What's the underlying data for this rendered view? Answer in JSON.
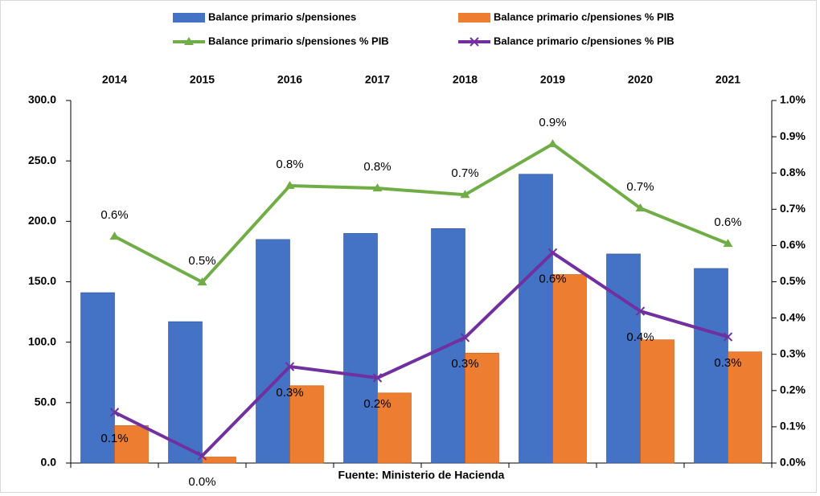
{
  "chart_data": {
    "type": "bar",
    "categories": [
      "2014",
      "2015",
      "2016",
      "2017",
      "2018",
      "2019",
      "2020",
      "2021"
    ],
    "series": [
      {
        "name": "Balance primario s/pensiones",
        "type": "bar",
        "color": "#4472c4",
        "values": [
          141,
          117,
          185,
          190,
          194,
          239,
          173,
          161
        ]
      },
      {
        "name": "Balance primario  c/pensiones % PIB",
        "type": "bar",
        "color": "#ed7d31",
        "values": [
          31,
          5,
          64,
          58,
          91,
          156,
          102,
          92
        ]
      },
      {
        "name": "Balance primario  s/pensiones % PIB",
        "type": "line",
        "axis": "y2",
        "color": "#70ad47",
        "marker": "triangle",
        "values": [
          0.625,
          0.499,
          0.765,
          0.758,
          0.74,
          0.88,
          0.703,
          0.605
        ],
        "value_labels": [
          "0.6%",
          "0.5%",
          "0.8%",
          "0.8%",
          "0.7%",
          "0.9%",
          "0.7%",
          "0.6%"
        ]
      },
      {
        "name": "Balance primario  c/pensiones % PIB",
        "type": "line",
        "axis": "y2",
        "color": "#7030a0",
        "marker": "x",
        "values": [
          0.14,
          0.02,
          0.266,
          0.235,
          0.346,
          0.58,
          0.419,
          0.348
        ],
        "value_labels": [
          "0.1%",
          "0.0%",
          "0.3%",
          "0.2%",
          "0.3%",
          "0.6%",
          "0.4%",
          "0.3%"
        ]
      }
    ],
    "ylim": [
      0,
      300
    ],
    "yticks": [
      {
        "value": 0,
        "label": "0.0"
      },
      {
        "value": 50,
        "label": "50.0"
      },
      {
        "value": 100,
        "label": "100.0"
      },
      {
        "value": 150,
        "label": "150.0"
      },
      {
        "value": 200,
        "label": "200.0"
      },
      {
        "value": 250,
        "label": "250.0"
      },
      {
        "value": 300,
        "label": "300.0"
      }
    ],
    "y2lim": [
      0,
      1
    ],
    "y2ticks": [
      {
        "value": 0,
        "label": "0.0%"
      },
      {
        "value": 0.1,
        "label": "0.1%"
      },
      {
        "value": 0.2,
        "label": "0.2%"
      },
      {
        "value": 0.3,
        "label": "0.3%"
      },
      {
        "value": 0.4,
        "label": "0.4%"
      },
      {
        "value": 0.5,
        "label": "0.5%"
      },
      {
        "value": 0.6,
        "label": "0.6%"
      },
      {
        "value": 0.7,
        "label": "0.7%"
      },
      {
        "value": 0.8,
        "label": "0.8%"
      },
      {
        "value": 0.9,
        "label": "0.9%"
      },
      {
        "value": 1,
        "label": "1.0%"
      }
    ],
    "source": "Fuente: Ministerio de Hacienda",
    "legend": "top"
  }
}
